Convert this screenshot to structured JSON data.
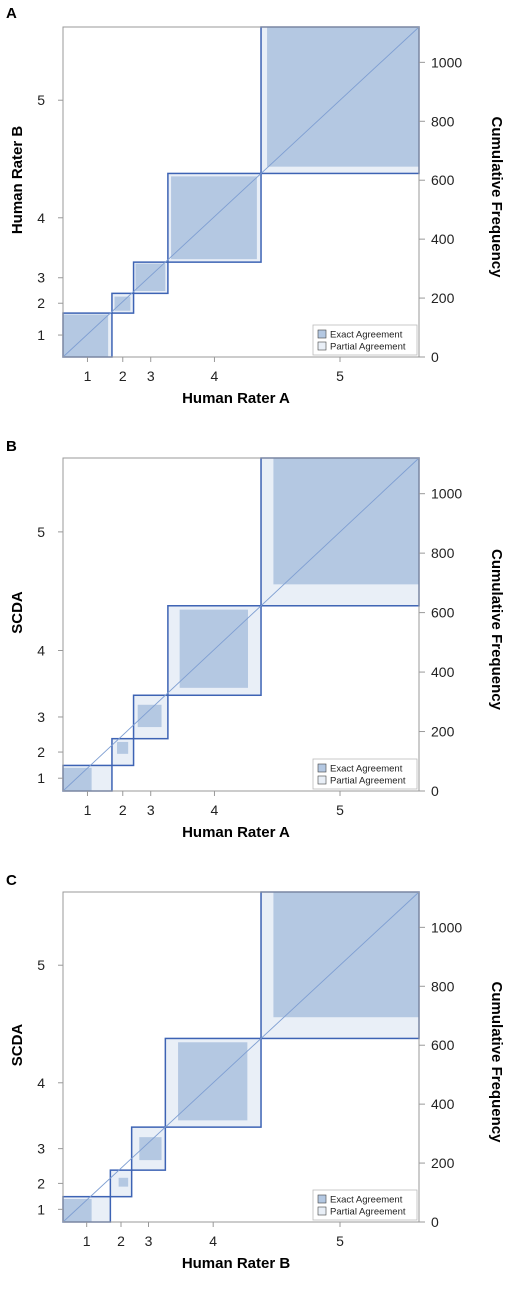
{
  "colors": {
    "exact": "#b4c8e2",
    "partial": "#e9eff7",
    "rect_border": "#3d63b4",
    "diagonal": "#7f9fd2",
    "frame": "#999999",
    "legend_border": "#bbbbbb"
  },
  "chart_data": [
    {
      "type": "agreement",
      "panel": "A",
      "title": "",
      "xlabel": "Human Rater A",
      "ylabel": "Human Rater B",
      "y2label": "Cumulative Frequency",
      "y2_ticks": [
        0,
        200,
        400,
        600,
        800,
        1000
      ],
      "total": 1120,
      "categories": [
        "1",
        "2",
        "3",
        "4",
        "5"
      ],
      "x_cum": [
        0,
        154,
        222,
        330,
        623,
        1120
      ],
      "y_cum": [
        0,
        149,
        216,
        322,
        623,
        1120
      ],
      "exact": [
        [
          0,
          142,
          0,
          144
        ],
        [
          162,
          212,
          157,
          205
        ],
        [
          228,
          322,
          224,
          317
        ],
        [
          340,
          610,
          332,
          613
        ],
        [
          642,
          1120,
          646,
          1120
        ]
      ],
      "partial": [
        [
          0,
          154,
          0,
          149
        ],
        [
          154,
          222,
          149,
          216
        ],
        [
          222,
          330,
          216,
          322
        ],
        [
          330,
          623,
          322,
          623
        ],
        [
          623,
          1120,
          623,
          1120
        ]
      ],
      "legend": [
        "Exact Agreement",
        "Partial Agreement"
      ]
    },
    {
      "type": "agreement",
      "panel": "B",
      "title": "",
      "xlabel": "Human Rater A",
      "ylabel": "SCDA",
      "y2label": "Cumulative Frequency",
      "y2_ticks": [
        0,
        200,
        400,
        600,
        800,
        1000
      ],
      "total": 1120,
      "categories": [
        "1",
        "2",
        "3",
        "4",
        "5"
      ],
      "x_cum": [
        0,
        154,
        222,
        330,
        623,
        1120
      ],
      "y_cum": [
        0,
        86,
        176,
        322,
        623,
        1120
      ],
      "exact": [
        [
          0,
          90,
          0,
          78
        ],
        [
          170,
          205,
          125,
          165
        ],
        [
          235,
          310,
          215,
          290
        ],
        [
          367,
          582,
          347,
          610
        ],
        [
          662,
          1120,
          695,
          1120
        ]
      ],
      "partial": [
        [
          0,
          154,
          0,
          86
        ],
        [
          154,
          222,
          86,
          176
        ],
        [
          222,
          330,
          176,
          322
        ],
        [
          330,
          623,
          322,
          623
        ],
        [
          623,
          1120,
          623,
          1120
        ]
      ],
      "legend": [
        "Exact Agreement",
        "Partial Agreement"
      ]
    },
    {
      "type": "agreement",
      "panel": "C",
      "title": "",
      "xlabel": "Human Rater B",
      "ylabel": "SCDA",
      "y2label": "Cumulative Frequency",
      "y2_ticks": [
        0,
        200,
        400,
        600,
        800,
        1000
      ],
      "total": 1120,
      "categories": [
        "1",
        "2",
        "3",
        "4",
        "5"
      ],
      "x_cum": [
        0,
        149,
        216,
        322,
        623,
        1120
      ],
      "y_cum": [
        0,
        86,
        176,
        322,
        623,
        1120
      ],
      "exact": [
        [
          0,
          90,
          0,
          78
        ],
        [
          175,
          205,
          120,
          150
        ],
        [
          240,
          310,
          210,
          288
        ],
        [
          362,
          580,
          345,
          610
        ],
        [
          662,
          1120,
          695,
          1120
        ]
      ],
      "partial": [
        [
          0,
          149,
          0,
          86
        ],
        [
          149,
          216,
          86,
          176
        ],
        [
          216,
          322,
          176,
          322
        ],
        [
          322,
          623,
          322,
          623
        ],
        [
          623,
          1120,
          623,
          1120
        ]
      ],
      "legend": [
        "Exact Agreement",
        "Partial Agreement"
      ]
    }
  ]
}
